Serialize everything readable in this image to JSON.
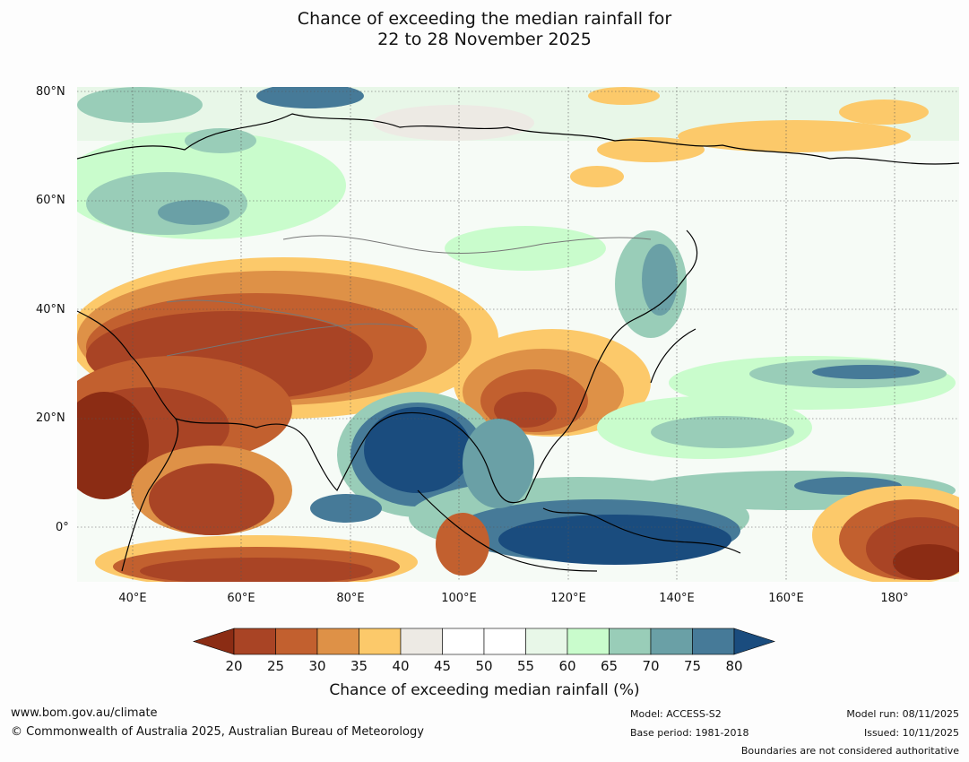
{
  "title": {
    "line1": "Chance of exceeding the median rainfall for",
    "line2": "22 to 28 November 2025"
  },
  "map": {
    "lat_labels": [
      "80°N",
      "60°N",
      "40°N",
      "20°N",
      "0°"
    ],
    "lon_labels": [
      "40°E",
      "60°E",
      "80°E",
      "100°E",
      "120°E",
      "140°E",
      "160°E",
      "180°"
    ],
    "extent": {
      "lon_min": 30,
      "lon_max": 192,
      "lat_min": -10,
      "lat_max": 80
    }
  },
  "colorbar": {
    "label": "Chance of exceeding median rainfall (%)",
    "ticks": [
      "20",
      "25",
      "30",
      "35",
      "40",
      "45",
      "50",
      "55",
      "60",
      "65",
      "70",
      "75",
      "80"
    ],
    "under_color": "#8b2c14",
    "over_color": "#1a4c7e",
    "colors": [
      "#a94425",
      "#c2602f",
      "#de9147",
      "#fcc96a",
      "#edeae4",
      "#ffffff",
      "#ffffff",
      "#e8f7e8",
      "#c9fccc",
      "#99cdb8",
      "#6aa0a6",
      "#467a98"
    ]
  },
  "footer": {
    "url": "www.bom.gov.au/climate",
    "copyright": "© Commonwealth of Australia 2025, Australian Bureau of Meteorology",
    "model": "Model: ACCESS-S2",
    "base_period": "Base period: 1981-2018",
    "model_run": "Model run: 08/11/2025",
    "issued": "Issued: 10/11/2025",
    "disclaimer": "Boundaries are not considered authoritative"
  }
}
